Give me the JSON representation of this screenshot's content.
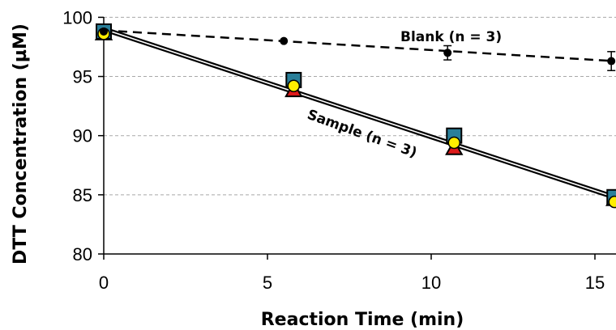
{
  "chart_data": {
    "type": "scatter",
    "xlabel": "Reaction Time (min)",
    "ylabel": "DTT Concentration (µM)",
    "xlim": [
      0,
      15.6
    ],
    "ylim": [
      80,
      100
    ],
    "x_ticks": [
      "0",
      "5",
      "10",
      "15"
    ],
    "y_ticks": [
      "80",
      "85",
      "90",
      "95",
      "100"
    ],
    "grid": "horizontal dashed",
    "annotations": [
      {
        "text": "Blank (n = 3)",
        "series": "blank"
      },
      {
        "text": "Sample (n = 3)",
        "series": "sample"
      }
    ],
    "series": [
      {
        "id": "blank",
        "marker": "circle",
        "color": "#000000",
        "line": "dashed",
        "points": [
          {
            "x": 0,
            "y": 98.8,
            "err": 0
          },
          {
            "x": 5.5,
            "y": 98.0,
            "err": 0
          },
          {
            "x": 10.5,
            "y": 97.0,
            "err": 0.6
          },
          {
            "x": 15.5,
            "y": 96.3,
            "err": 0.8
          }
        ]
      },
      {
        "id": "sample-triangle",
        "marker": "triangle",
        "color": "#dd1a1a",
        "points": [
          {
            "x": 0,
            "y": 98.6
          },
          {
            "x": 5.8,
            "y": 93.8
          },
          {
            "x": 10.7,
            "y": 88.9
          },
          {
            "x": 15.6,
            "y": 84.6
          }
        ]
      },
      {
        "id": "sample-square",
        "marker": "square",
        "color": "#2a7f99",
        "points": [
          {
            "x": 0,
            "y": 98.8
          },
          {
            "x": 5.8,
            "y": 94.7
          },
          {
            "x": 10.7,
            "y": 90.0
          },
          {
            "x": 15.6,
            "y": 84.8
          }
        ]
      },
      {
        "id": "sample-circle",
        "marker": "circle",
        "color": "#ffee00",
        "points": [
          {
            "x": 0,
            "y": 98.6
          },
          {
            "x": 5.8,
            "y": 94.2
          },
          {
            "x": 10.7,
            "y": 89.4
          },
          {
            "x": 15.6,
            "y": 84.4
          }
        ]
      }
    ],
    "fit_lines": [
      {
        "id": "sample-fit",
        "style": "double solid",
        "x": [
          0,
          15.6
        ],
        "y": [
          99.0,
          84.8
        ]
      },
      {
        "id": "blank-fit",
        "style": "dashed",
        "x": [
          0,
          15.6
        ],
        "y": [
          98.9,
          96.3
        ]
      }
    ]
  }
}
